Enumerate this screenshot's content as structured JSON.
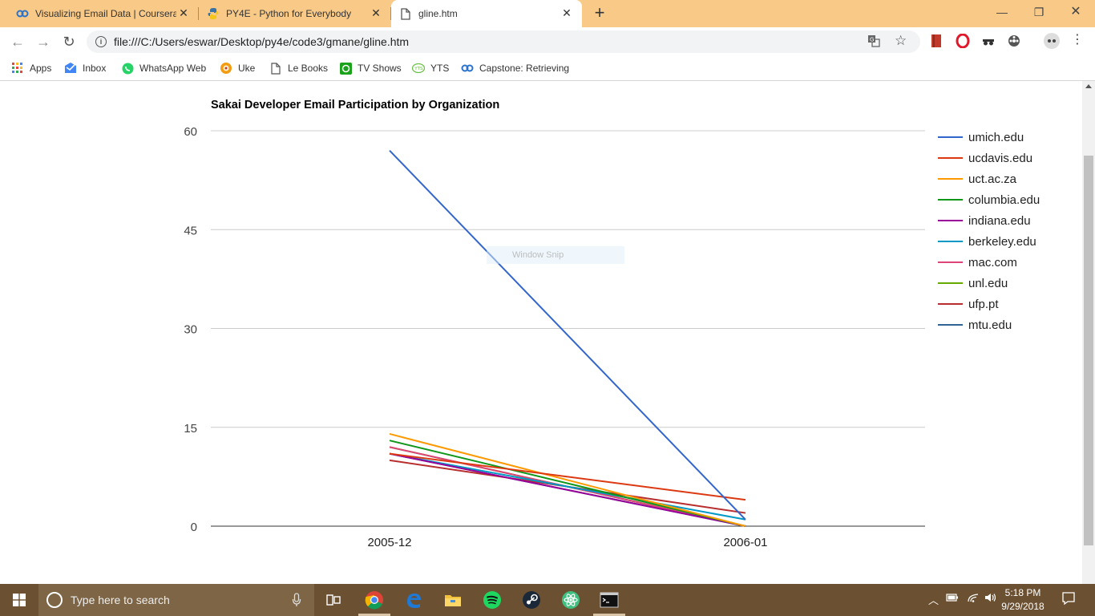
{
  "browser": {
    "tabs": [
      {
        "title": "Visualizing Email Data | Coursera",
        "icon": "coursera-icon",
        "active": false
      },
      {
        "title": "PY4E - Python for Everybody",
        "icon": "python-icon",
        "active": false
      },
      {
        "title": "gline.htm",
        "icon": "file-icon",
        "active": true
      }
    ],
    "new_tab_label": "+",
    "url": "file:///C:/Users/eswar/Desktop/py4e/code3/gmane/gline.htm",
    "bookmarks": [
      {
        "label": "Apps",
        "icon": "apps-grid-icon"
      },
      {
        "label": "Inbox",
        "icon": "inbox-icon"
      },
      {
        "label": "WhatsApp Web",
        "icon": "whatsapp-icon"
      },
      {
        "label": "Uke",
        "icon": "uke-icon"
      },
      {
        "label": "Le Books",
        "icon": "file-icon"
      },
      {
        "label": "TV Shows",
        "icon": "tv-icon"
      },
      {
        "label": "YTS",
        "icon": "yts-icon"
      },
      {
        "label": "Capstone: Retrieving",
        "icon": "coursera-icon"
      }
    ],
    "tab_strip_color": "#f9ca87"
  },
  "overlay": {
    "label": "Window Snip"
  },
  "chart_data": {
    "type": "line",
    "title": "Sakai Developer Email Participation by Organization",
    "xlabel": "",
    "ylabel": "",
    "categories": [
      "2005-12",
      "2006-01"
    ],
    "ylim": [
      0,
      60
    ],
    "yticks": [
      0,
      15,
      30,
      45,
      60
    ],
    "grid": true,
    "legend_position": "right",
    "series": [
      {
        "name": "umich.edu",
        "color": "#3366cc",
        "values": [
          57,
          1
        ]
      },
      {
        "name": "ucdavis.edu",
        "color": "#dc3912",
        "values": [
          11,
          4
        ]
      },
      {
        "name": "uct.ac.za",
        "color": "#ff9900",
        "values": [
          14,
          0
        ]
      },
      {
        "name": "columbia.edu",
        "color": "#109618",
        "values": [
          13,
          0
        ]
      },
      {
        "name": "indiana.edu",
        "color": "#990099",
        "values": [
          11,
          0
        ]
      },
      {
        "name": "berkeley.edu",
        "color": "#0099c6",
        "values": [
          11,
          1
        ]
      },
      {
        "name": "mac.com",
        "color": "#dd4477",
        "values": [
          12,
          0
        ]
      },
      {
        "name": "unl.edu",
        "color": "#66aa00",
        "values": [
          12,
          0
        ]
      },
      {
        "name": "ufp.pt",
        "color": "#b82e2e",
        "values": [
          10,
          2
        ]
      },
      {
        "name": "mtu.edu",
        "color": "#316395",
        "values": [
          11,
          0
        ]
      }
    ]
  },
  "taskbar": {
    "search_placeholder": "Type here to search",
    "apps": [
      "task-view-icon",
      "chrome-icon",
      "edge-icon",
      "file-explorer-icon",
      "spotify-icon",
      "steam-icon",
      "atom-icon",
      "cmd-icon"
    ],
    "time": "5:18 PM",
    "date": "9/29/2018",
    "color": "#6b5132"
  }
}
